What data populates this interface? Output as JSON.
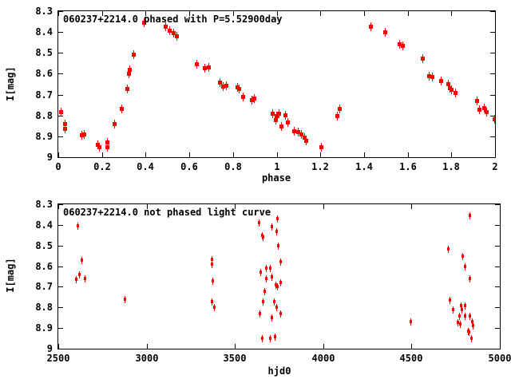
{
  "window": {
    "background": "#ffffff"
  },
  "colors": {
    "points": "#ff0000",
    "axis": "#000000",
    "text": "#000000"
  },
  "chart_data": [
    {
      "type": "scatter",
      "title": "060237+2214.0 phased with P=5.52900day",
      "xlabel": "phase",
      "ylabel": "I[mag]",
      "xlim": [
        0,
        2
      ],
      "ylim": [
        9,
        8.3
      ],
      "y_axis_inverted_magnitudes": true,
      "grid": false,
      "legend": "none",
      "marker": "red filled square with vertical error bar",
      "xtick_values": [
        0,
        0.2,
        0.4,
        0.6,
        0.8,
        1,
        1.2,
        1.4,
        1.6,
        1.8,
        2
      ],
      "xtick_labels": [
        "0",
        "0.2",
        "0.4",
        "0.6",
        "0.8",
        "1",
        "1.2",
        "1.4",
        "1.6",
        "1.8",
        "2"
      ],
      "ytick_values": [
        8.3,
        8.4,
        8.5,
        8.6,
        8.7,
        8.8,
        8.9,
        9
      ],
      "ytick_labels": [
        "8.3",
        "8.4",
        "8.5",
        "8.6",
        "8.7",
        "8.8",
        "8.9",
        "9"
      ],
      "points": [
        [
          0.011,
          8.78
        ],
        [
          0.028,
          8.84
        ],
        [
          0.028,
          8.862
        ],
        [
          0.105,
          8.893
        ],
        [
          0.118,
          8.887
        ],
        [
          0.18,
          8.94
        ],
        [
          0.187,
          8.951
        ],
        [
          0.222,
          8.926
        ],
        [
          0.222,
          8.951
        ],
        [
          0.257,
          8.838
        ],
        [
          0.288,
          8.765
        ],
        [
          0.313,
          8.67
        ],
        [
          0.322,
          8.6
        ],
        [
          0.324,
          8.578
        ],
        [
          0.345,
          8.505
        ],
        [
          0.392,
          8.355
        ],
        [
          0.49,
          8.374
        ],
        [
          0.508,
          8.39
        ],
        [
          0.525,
          8.404
        ],
        [
          0.54,
          8.42
        ],
        [
          0.633,
          8.552
        ],
        [
          0.668,
          8.57
        ],
        [
          0.687,
          8.566
        ],
        [
          0.737,
          8.64
        ],
        [
          0.752,
          8.66
        ],
        [
          0.767,
          8.654
        ],
        [
          0.818,
          8.663
        ],
        [
          0.827,
          8.669
        ],
        [
          0.845,
          8.71
        ],
        [
          0.885,
          8.724
        ],
        [
          0.897,
          8.718
        ],
        [
          0.98,
          8.791
        ],
        [
          0.993,
          8.82
        ],
        [
          0.998,
          8.8
        ],
        [
          1.008,
          8.791
        ],
        [
          1.02,
          8.849
        ],
        [
          1.038,
          8.797
        ],
        [
          1.05,
          8.83
        ],
        [
          1.08,
          8.874
        ],
        [
          1.098,
          8.878
        ],
        [
          1.11,
          8.887
        ],
        [
          1.125,
          8.906
        ],
        [
          1.132,
          8.919
        ],
        [
          1.201,
          8.951
        ],
        [
          1.277,
          8.8
        ],
        [
          1.286,
          8.765
        ],
        [
          1.429,
          8.374
        ],
        [
          1.495,
          8.4
        ],
        [
          1.562,
          8.458
        ],
        [
          1.577,
          8.464
        ],
        [
          1.666,
          8.525
        ],
        [
          1.697,
          8.611
        ],
        [
          1.71,
          8.615
        ],
        [
          1.753,
          8.634
        ],
        [
          1.783,
          8.646
        ],
        [
          1.79,
          8.666
        ],
        [
          1.798,
          8.676
        ],
        [
          1.818,
          8.691
        ],
        [
          1.915,
          8.727
        ],
        [
          1.927,
          8.772
        ],
        [
          1.948,
          8.763
        ],
        [
          1.96,
          8.781
        ],
        [
          1.996,
          8.817
        ]
      ]
    },
    {
      "type": "scatter",
      "title": "060237+2214.0 not phased light curve",
      "xlabel": "hjd0",
      "ylabel": "I[mag]",
      "xlim": [
        2500,
        5000
      ],
      "ylim": [
        9,
        8.3
      ],
      "y_axis_inverted_magnitudes": true,
      "grid": false,
      "legend": "none",
      "marker": "red dot with vertical error bar",
      "xtick_values": [
        2500,
        3000,
        3500,
        4000,
        4500,
        5000
      ],
      "xtick_labels": [
        "2500",
        "3000",
        "3500",
        "4000",
        "4500",
        "5000"
      ],
      "ytick_values": [
        8.3,
        8.4,
        8.5,
        8.6,
        8.7,
        8.8,
        8.9,
        9
      ],
      "ytick_labels": [
        "8.3",
        "8.4",
        "8.5",
        "8.6",
        "8.7",
        "8.8",
        "8.9",
        "9"
      ],
      "points": [
        [
          2598,
          8.665
        ],
        [
          2607,
          8.405
        ],
        [
          2617,
          8.64
        ],
        [
          2631,
          8.57
        ],
        [
          2650,
          8.66
        ],
        [
          2877,
          8.76
        ],
        [
          3366,
          8.565
        ],
        [
          3366,
          8.59
        ],
        [
          3374,
          8.67
        ],
        [
          3367,
          8.77
        ],
        [
          3383,
          8.8
        ],
        [
          3633,
          8.39
        ],
        [
          3652,
          8.45
        ],
        [
          3659,
          8.46
        ],
        [
          3644,
          8.63
        ],
        [
          3639,
          8.83
        ],
        [
          3652,
          8.95
        ],
        [
          3656,
          8.77
        ],
        [
          3667,
          8.72
        ],
        [
          3674,
          8.61
        ],
        [
          3674,
          8.66
        ],
        [
          3697,
          8.95
        ],
        [
          3700,
          8.61
        ],
        [
          3705,
          8.41
        ],
        [
          3705,
          8.65
        ],
        [
          3708,
          8.85
        ],
        [
          3720,
          8.77
        ],
        [
          3727,
          8.94
        ],
        [
          3728,
          8.69
        ],
        [
          3732,
          8.43
        ],
        [
          3732,
          8.8
        ],
        [
          3740,
          8.37
        ],
        [
          3740,
          8.7
        ],
        [
          3745,
          8.5
        ],
        [
          3755,
          8.58
        ],
        [
          3755,
          8.68
        ],
        [
          3755,
          8.83
        ],
        [
          4494,
          8.87
        ],
        [
          4704,
          8.515
        ],
        [
          4714,
          8.765
        ],
        [
          4733,
          8.81
        ],
        [
          4762,
          8.873
        ],
        [
          4770,
          8.84
        ],
        [
          4774,
          8.88
        ],
        [
          4777,
          8.79
        ],
        [
          4784,
          8.81
        ],
        [
          4787,
          8.55
        ],
        [
          4799,
          8.79
        ],
        [
          4799,
          8.84
        ],
        [
          4801,
          8.6
        ],
        [
          4817,
          8.915
        ],
        [
          4823,
          8.92
        ],
        [
          4827,
          8.355
        ],
        [
          4827,
          8.66
        ],
        [
          4827,
          8.84
        ],
        [
          4835,
          8.95
        ],
        [
          4842,
          8.87
        ],
        [
          4846,
          8.886
        ]
      ]
    }
  ]
}
